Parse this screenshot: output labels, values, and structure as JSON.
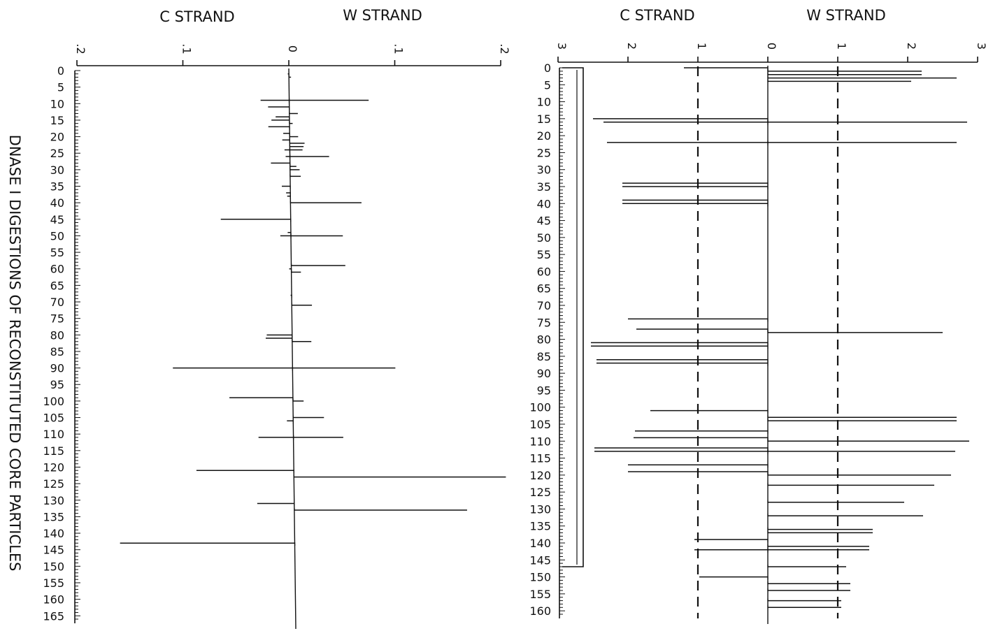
{
  "side_title": "DNASE I DIGESTIONS OF RECONSTITUTED CORE PARTICLES",
  "chart_data": [
    {
      "type": "bar",
      "orientation": "horizontal",
      "title": "",
      "strand_labels": {
        "c": "C STRAND",
        "w": "W STRAND"
      },
      "xlim": [
        -0.2,
        0.2
      ],
      "x_ticks": [
        {
          "v": -0.2,
          "label": ".2"
        },
        {
          "v": -0.1,
          "label": ".1"
        },
        {
          "v": 0,
          "label": "0"
        },
        {
          "v": 0.1,
          "label": ".1"
        },
        {
          "v": 0.2,
          "label": ".2"
        }
      ],
      "ylim": [
        0,
        166
      ],
      "y_ticks": [
        0,
        5,
        10,
        15,
        20,
        25,
        30,
        35,
        40,
        45,
        50,
        55,
        60,
        65,
        70,
        75,
        80,
        85,
        90,
        95,
        100,
        105,
        110,
        115,
        120,
        125,
        130,
        135,
        140,
        145,
        150,
        155,
        160,
        165
      ],
      "c_strand": [
        {
          "pos": 1,
          "value": 0.001
        },
        {
          "pos": 9,
          "value": 0.027
        },
        {
          "pos": 11,
          "value": 0.02
        },
        {
          "pos": 14,
          "value": 0.013
        },
        {
          "pos": 15,
          "value": 0.017
        },
        {
          "pos": 17,
          "value": 0.02
        },
        {
          "pos": 19,
          "value": 0.006
        },
        {
          "pos": 21,
          "value": 0.007
        },
        {
          "pos": 24,
          "value": 0.005
        },
        {
          "pos": 26,
          "value": 0.004
        },
        {
          "pos": 28,
          "value": 0.018
        },
        {
          "pos": 35,
          "value": 0.008
        },
        {
          "pos": 37,
          "value": 0.004
        },
        {
          "pos": 38,
          "value": 0.003
        },
        {
          "pos": 45,
          "value": 0.066
        },
        {
          "pos": 49,
          "value": 0.003
        },
        {
          "pos": 50,
          "value": 0.01
        },
        {
          "pos": 60,
          "value": 0.002
        },
        {
          "pos": 68,
          "value": 0.001
        },
        {
          "pos": 80,
          "value": 0.024
        },
        {
          "pos": 81,
          "value": 0.025
        },
        {
          "pos": 90,
          "value": 0.113
        },
        {
          "pos": 99,
          "value": 0.06
        },
        {
          "pos": 106,
          "value": 0.006
        },
        {
          "pos": 111,
          "value": 0.033
        },
        {
          "pos": 121,
          "value": 0.092
        },
        {
          "pos": 131,
          "value": 0.035
        },
        {
          "pos": 143,
          "value": 0.165
        }
      ],
      "w_strand": [
        {
          "pos": 2,
          "value": 0.002
        },
        {
          "pos": 9,
          "value": 0.075
        },
        {
          "pos": 13,
          "value": 0.008
        },
        {
          "pos": 16,
          "value": 0.003
        },
        {
          "pos": 20,
          "value": 0.008
        },
        {
          "pos": 22,
          "value": 0.014
        },
        {
          "pos": 23,
          "value": 0.013
        },
        {
          "pos": 24,
          "value": 0.012
        },
        {
          "pos": 26,
          "value": 0.037
        },
        {
          "pos": 29,
          "value": 0.006
        },
        {
          "pos": 30,
          "value": 0.009
        },
        {
          "pos": 32,
          "value": 0.01
        },
        {
          "pos": 40,
          "value": 0.067
        },
        {
          "pos": 50,
          "value": 0.049
        },
        {
          "pos": 59,
          "value": 0.051
        },
        {
          "pos": 61,
          "value": 0.009
        },
        {
          "pos": 71,
          "value": 0.019
        },
        {
          "pos": 82,
          "value": 0.018
        },
        {
          "pos": 90,
          "value": 0.097
        },
        {
          "pos": 100,
          "value": 0.01
        },
        {
          "pos": 105,
          "value": 0.029
        },
        {
          "pos": 111,
          "value": 0.047
        },
        {
          "pos": 123,
          "value": 0.2
        },
        {
          "pos": 133,
          "value": 0.163
        }
      ]
    },
    {
      "type": "bar",
      "orientation": "horizontal",
      "title": "",
      "strand_labels": {
        "c": "C STRAND",
        "w": "W STRAND"
      },
      "xlim": [
        -3,
        3
      ],
      "x_ticks": [
        {
          "v": -3,
          "label": "3"
        },
        {
          "v": -2,
          "label": "2"
        },
        {
          "v": -1,
          "label": "1"
        },
        {
          "v": 0,
          "label": "0"
        },
        {
          "v": 1,
          "label": "1"
        },
        {
          "v": 2,
          "label": "2"
        },
        {
          "v": 3,
          "label": "3"
        }
      ],
      "reference_lines": [
        -1,
        1
      ],
      "ylim": [
        0,
        161
      ],
      "y_ticks": [
        0,
        5,
        10,
        15,
        20,
        25,
        30,
        35,
        40,
        45,
        50,
        55,
        60,
        65,
        70,
        75,
        80,
        85,
        90,
        95,
        100,
        105,
        110,
        115,
        120,
        125,
        130,
        135,
        140,
        145,
        150,
        155,
        160
      ],
      "bracket": [
        0,
        147
      ],
      "c_strand": [
        {
          "pos": 0,
          "value": 1.2
        },
        {
          "pos": 15,
          "value": 2.5
        },
        {
          "pos": 16,
          "value": 2.35
        },
        {
          "pos": 22,
          "value": 2.3
        },
        {
          "pos": 34,
          "value": 2.08
        },
        {
          "pos": 35,
          "value": 2.08
        },
        {
          "pos": 39,
          "value": 2.08
        },
        {
          "pos": 40,
          "value": 2.08
        },
        {
          "pos": 74,
          "value": 2.0
        },
        {
          "pos": 77,
          "value": 1.88
        },
        {
          "pos": 81,
          "value": 2.53
        },
        {
          "pos": 82,
          "value": 2.53
        },
        {
          "pos": 86,
          "value": 2.45
        },
        {
          "pos": 87,
          "value": 2.45
        },
        {
          "pos": 101,
          "value": 1.68
        },
        {
          "pos": 107,
          "value": 1.9
        },
        {
          "pos": 109,
          "value": 1.92
        },
        {
          "pos": 112,
          "value": 2.48
        },
        {
          "pos": 113,
          "value": 2.48
        },
        {
          "pos": 117,
          "value": 2.0
        },
        {
          "pos": 119,
          "value": 2.0
        },
        {
          "pos": 139,
          "value": 1.05
        },
        {
          "pos": 142,
          "value": 1.05
        },
        {
          "pos": 150,
          "value": 0.98
        }
      ],
      "w_strand": [
        {
          "pos": 1,
          "value": 2.2
        },
        {
          "pos": 2,
          "value": 2.2
        },
        {
          "pos": 3,
          "value": 2.7
        },
        {
          "pos": 4,
          "value": 2.05
        },
        {
          "pos": 16,
          "value": 2.85
        },
        {
          "pos": 22,
          "value": 2.7
        },
        {
          "pos": 78,
          "value": 2.5
        },
        {
          "pos": 103,
          "value": 2.7
        },
        {
          "pos": 104,
          "value": 2.7
        },
        {
          "pos": 110,
          "value": 2.88
        },
        {
          "pos": 113,
          "value": 2.68
        },
        {
          "pos": 120,
          "value": 2.62
        },
        {
          "pos": 123,
          "value": 2.38
        },
        {
          "pos": 128,
          "value": 1.95
        },
        {
          "pos": 132,
          "value": 2.22
        },
        {
          "pos": 136,
          "value": 1.5
        },
        {
          "pos": 137,
          "value": 1.5
        },
        {
          "pos": 141,
          "value": 1.45
        },
        {
          "pos": 142,
          "value": 1.45
        },
        {
          "pos": 147,
          "value": 1.12
        },
        {
          "pos": 152,
          "value": 1.18
        },
        {
          "pos": 154,
          "value": 1.18
        },
        {
          "pos": 157,
          "value": 1.05
        },
        {
          "pos": 159,
          "value": 1.05
        }
      ]
    }
  ]
}
